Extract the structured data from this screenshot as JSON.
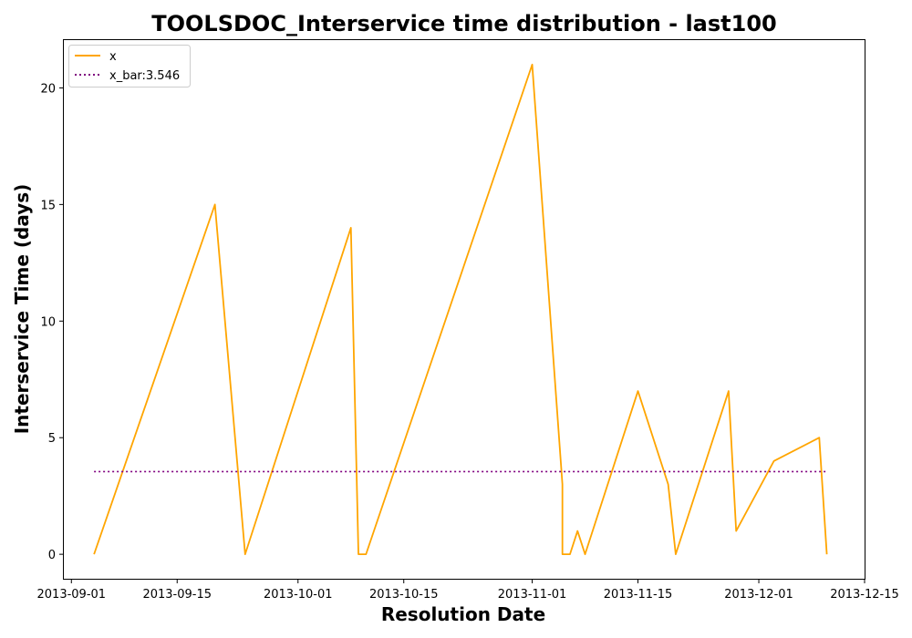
{
  "chart_data": {
    "type": "line",
    "title": "TOOLSDOC_Interservice time distribution - last100",
    "xlabel": "Resolution Date",
    "ylabel": "Interservice Time (days)",
    "xlim": [
      "2013-08-31",
      "2013-12-15"
    ],
    "ylim": [
      -1.05,
      22.05
    ],
    "x_ticks": [
      "2013-09-01",
      "2013-09-15",
      "2013-10-01",
      "2013-10-15",
      "2013-11-01",
      "2013-11-15",
      "2013-12-01",
      "2013-12-15"
    ],
    "y_ticks": [
      0,
      5,
      10,
      15,
      20
    ],
    "grid": false,
    "legend_position": "top-left",
    "series": [
      {
        "name": "x",
        "color": "#FFA500",
        "style": "solid",
        "points": [
          {
            "x": "2013-09-04",
            "y": 0
          },
          {
            "x": "2013-09-20",
            "y": 15
          },
          {
            "x": "2013-09-24",
            "y": 0
          },
          {
            "x": "2013-10-08",
            "y": 14
          },
          {
            "x": "2013-10-09",
            "y": 0
          },
          {
            "x": "2013-10-10",
            "y": 0
          },
          {
            "x": "2013-11-01",
            "y": 21
          },
          {
            "x": "2013-11-05",
            "y": 3
          },
          {
            "x": "2013-11-05",
            "y": 0
          },
          {
            "x": "2013-11-06",
            "y": 0
          },
          {
            "x": "2013-11-07",
            "y": 1
          },
          {
            "x": "2013-11-08",
            "y": 0
          },
          {
            "x": "2013-11-15",
            "y": 7
          },
          {
            "x": "2013-11-19",
            "y": 3
          },
          {
            "x": "2013-11-20",
            "y": 0
          },
          {
            "x": "2013-11-27",
            "y": 7
          },
          {
            "x": "2013-11-28",
            "y": 1
          },
          {
            "x": "2013-12-03",
            "y": 4
          },
          {
            "x": "2013-12-09",
            "y": 5
          },
          {
            "x": "2013-12-10",
            "y": 0
          },
          {
            "x": "2013-12-10",
            "y": 0
          }
        ]
      },
      {
        "name": "x_bar:3.546",
        "color": "#800080",
        "style": "dotted",
        "points": [
          {
            "x": "2013-09-04",
            "y": 3.546
          },
          {
            "x": "2013-12-10",
            "y": 3.546
          }
        ]
      }
    ]
  }
}
